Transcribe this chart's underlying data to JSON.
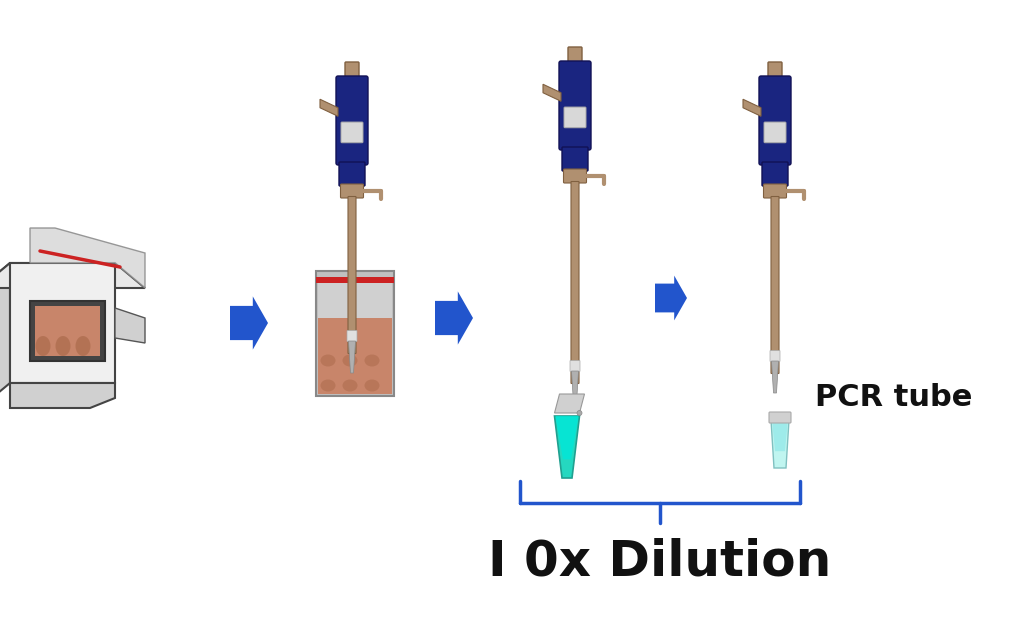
{
  "label_10x": "I 0x Dilution",
  "label_pcr": "PCR tube",
  "bg_color": "#ffffff",
  "arrow_color": "#2255cc",
  "pipette_blue": "#1a237e",
  "pipette_blue2": "#1e3a9e",
  "pipette_tan": "#b09070",
  "pipette_tip_white": "#e8e8e8",
  "pipette_tip_gray": "#aaaaaa",
  "tube_cyan_bright": "#00e5d0",
  "tube_light_cyan": "#b0f0f0",
  "bracket_color": "#2255cc",
  "label_fontsize": 36,
  "pcr_fontsize": 22,
  "fig_width": 10.24,
  "fig_height": 6.33,
  "stomacher_gray": "#e8e8e8",
  "stomacher_dark": "#555555",
  "stomacher_meat": "#c8856a",
  "bag_gray": "#c8c8c8",
  "bag_meat": "#c8856a",
  "bag_red": "#cc2222"
}
